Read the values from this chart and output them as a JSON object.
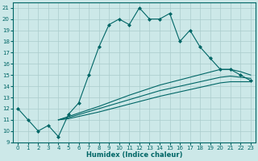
{
  "xlabel": "Humidex (Indice chaleur)",
  "xlim": [
    -0.5,
    23.5
  ],
  "ylim": [
    9,
    21.5
  ],
  "yticks": [
    9,
    10,
    11,
    12,
    13,
    14,
    15,
    16,
    17,
    18,
    19,
    20,
    21
  ],
  "xticks": [
    0,
    1,
    2,
    3,
    4,
    5,
    6,
    7,
    8,
    9,
    10,
    11,
    12,
    13,
    14,
    15,
    16,
    17,
    18,
    19,
    20,
    21,
    22,
    23
  ],
  "bg_color": "#cce8e8",
  "line_color": "#006666",
  "grid_color": "#aacccc",
  "line1_x": [
    0,
    1,
    2,
    3,
    4,
    5,
    6,
    7,
    8,
    9,
    10,
    11,
    12,
    13,
    14,
    15,
    16,
    17,
    18,
    19,
    20,
    21,
    22,
    23
  ],
  "line1_y": [
    12,
    11,
    10,
    10.5,
    9.5,
    11.5,
    12.5,
    15,
    17.5,
    19.5,
    20,
    19.5,
    21,
    20,
    20,
    20.5,
    18,
    19,
    17.5,
    16.5,
    15.5,
    15.5,
    15,
    14.5
  ],
  "line2_x": [
    4,
    5,
    8,
    11,
    14,
    17,
    20,
    21,
    22,
    23
  ],
  "line2_y": [
    11,
    11.3,
    12.2,
    13.2,
    14.1,
    14.8,
    15.5,
    15.5,
    15.3,
    15.0
  ],
  "line3_x": [
    4,
    5,
    8,
    11,
    14,
    17,
    20,
    21,
    22,
    23
  ],
  "line3_y": [
    11,
    11.2,
    12.0,
    12.8,
    13.6,
    14.2,
    14.8,
    14.9,
    14.8,
    14.7
  ],
  "line4_x": [
    4,
    5,
    8,
    11,
    14,
    17,
    20,
    21,
    22,
    23
  ],
  "line4_y": [
    11,
    11.1,
    11.7,
    12.4,
    13.1,
    13.7,
    14.3,
    14.4,
    14.4,
    14.4
  ]
}
